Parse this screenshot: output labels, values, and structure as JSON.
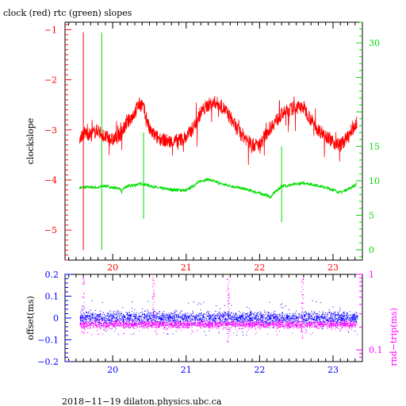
{
  "colors": {
    "red": "#ff0000",
    "green": "#00dd00",
    "blue": "#0000ff",
    "magenta": "#ff00ff",
    "black": "#000000"
  },
  "chart_data": [
    {
      "type": "line",
      "title": "clock (red) rtc (green) slopes",
      "ylabel": "clockslope",
      "x_ticks": [
        "20",
        "21",
        "22",
        "23"
      ],
      "xlim": [
        19.35,
        23.4
      ],
      "y_left_ticks": [
        "−1",
        "−2",
        "−3",
        "−4",
        "−5"
      ],
      "y_left_values": [
        -1,
        -2,
        -3,
        -4,
        -5
      ],
      "ylim_left": [
        -5.6,
        -0.85
      ],
      "y_right_ticks": [
        "30",
        "15",
        "10",
        "5",
        "0"
      ],
      "y_right_values": [
        30,
        15,
        10,
        5,
        0
      ],
      "ylim_right": [
        -1.5,
        33
      ],
      "series": [
        {
          "axis": "left",
          "x": [
            19.55,
            19.62,
            19.7,
            19.8,
            19.9,
            20.0,
            20.1,
            20.2,
            20.3,
            20.35,
            20.4,
            20.45,
            20.5,
            20.6,
            20.7,
            20.8,
            20.9,
            21.0,
            21.1,
            21.2,
            21.3,
            21.4,
            21.5,
            21.6,
            21.7,
            21.8,
            21.9,
            22.0,
            22.1,
            22.2,
            22.3,
            22.4,
            22.5,
            22.6,
            22.7,
            22.8,
            22.9,
            23.0,
            23.1,
            23.2,
            23.33
          ],
          "values": [
            -3.15,
            -3.05,
            -3.1,
            -3.0,
            -3.15,
            -3.2,
            -3.1,
            -2.85,
            -2.65,
            -2.5,
            -2.5,
            -2.7,
            -3.0,
            -3.15,
            -3.2,
            -3.25,
            -3.2,
            -3.15,
            -2.95,
            -2.65,
            -2.5,
            -2.45,
            -2.55,
            -2.75,
            -3.0,
            -3.15,
            -3.3,
            -3.3,
            -3.05,
            -2.85,
            -2.7,
            -2.6,
            -2.55,
            -2.55,
            -2.8,
            -3.0,
            -3.1,
            -3.25,
            -3.3,
            -3.15,
            -2.85
          ]
        },
        {
          "axis": "right",
          "x": [
            19.55,
            19.7,
            19.8,
            19.9,
            20.0,
            20.1,
            20.12,
            20.15,
            20.2,
            20.3,
            20.4,
            20.5,
            20.6,
            20.8,
            21.0,
            21.1,
            21.2,
            21.3,
            21.5,
            21.8,
            22.0,
            22.1,
            22.15,
            22.2,
            22.3,
            22.5,
            22.6,
            22.8,
            23.0,
            23.1,
            23.2,
            23.33
          ],
          "values": [
            9.0,
            9.1,
            9.0,
            9.3,
            9.0,
            8.9,
            8.3,
            8.9,
            9.2,
            9.4,
            9.6,
            9.3,
            9.0,
            8.7,
            8.6,
            9.3,
            10.0,
            10.2,
            9.5,
            8.8,
            8.2,
            7.9,
            7.6,
            8.3,
            9.2,
            9.5,
            9.7,
            9.3,
            8.7,
            8.3,
            8.8,
            9.5
          ]
        }
      ]
    },
    {
      "type": "scatter",
      "ylabel_left": "offset(ms)",
      "ylabel_right": "rnd−trip(ms)",
      "x_ticks": [
        "20",
        "21",
        "22",
        "23"
      ],
      "xlim": [
        19.35,
        23.4
      ],
      "y_left_ticks": [
        "0.2",
        "0.1",
        "0",
        "−0.1",
        "−0.2"
      ],
      "y_left_values": [
        0.2,
        0.1,
        0,
        -0.1,
        -0.2
      ],
      "ylim_left": [
        -0.2,
        0.2
      ],
      "y_right_ticks": [
        "1",
        "0.1"
      ],
      "series": [
        {
          "name": "offset",
          "band_center": 0.0,
          "band_halfwidth": 0.02
        },
        {
          "name": "rnd-trip",
          "band_center": -0.03,
          "band_halfwidth": 0.012
        }
      ]
    }
  ],
  "footer": "2018−11−19 dilaton.physics.ubc.ca"
}
